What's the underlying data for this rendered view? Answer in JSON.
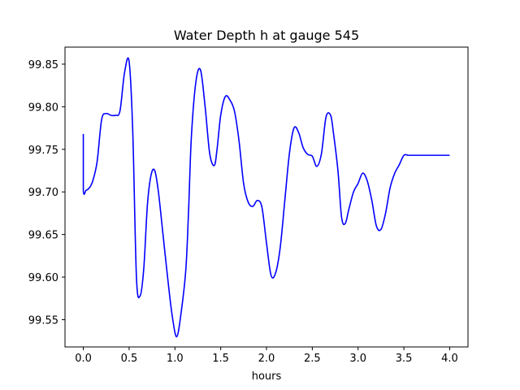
{
  "chart_data": {
    "type": "line",
    "title": "Water Depth h at gauge 545",
    "xlabel": "hours",
    "ylabel": "",
    "xlim": [
      -0.2,
      4.2
    ],
    "ylim": [
      99.518,
      99.87
    ],
    "grid": false,
    "xticks": [
      0.0,
      0.5,
      1.0,
      1.5,
      2.0,
      2.5,
      3.0,
      3.5,
      4.0
    ],
    "xtick_labels": [
      "0.0",
      "0.5",
      "1.0",
      "1.5",
      "2.0",
      "2.5",
      "3.0",
      "3.5",
      "4.0"
    ],
    "yticks": [
      99.55,
      99.6,
      99.65,
      99.7,
      99.75,
      99.8,
      99.85
    ],
    "ytick_labels": [
      "99.55",
      "99.60",
      "99.65",
      "99.70",
      "99.75",
      "99.80",
      "99.85"
    ],
    "series_color": "#0000ff",
    "series": [
      {
        "x": [
          0.0,
          0.0,
          0.03,
          0.06,
          0.1,
          0.15,
          0.2,
          0.25,
          0.3,
          0.35,
          0.4,
          0.45,
          0.5,
          0.54,
          0.58,
          0.62,
          0.66,
          0.7,
          0.74,
          0.78,
          0.82,
          0.87,
          0.92,
          0.97,
          1.02,
          1.07,
          1.12,
          1.15,
          1.18,
          1.23,
          1.28,
          1.33,
          1.38,
          1.43,
          1.46,
          1.5,
          1.55,
          1.6,
          1.65,
          1.7,
          1.75,
          1.8,
          1.85,
          1.9,
          1.95,
          2.0,
          2.05,
          2.1,
          2.15,
          2.2,
          2.25,
          2.3,
          2.35,
          2.4,
          2.45,
          2.5,
          2.55,
          2.6,
          2.65,
          2.7,
          2.73,
          2.78,
          2.82,
          2.86,
          2.9,
          2.95,
          3.0,
          3.05,
          3.1,
          3.15,
          3.2,
          3.25,
          3.3,
          3.35,
          3.4,
          3.45,
          3.5,
          3.55,
          3.6,
          3.65,
          3.7,
          3.75,
          3.8,
          3.85,
          3.9,
          3.95,
          4.0
        ],
        "y": [
          99.768,
          99.702,
          99.702,
          99.704,
          99.712,
          99.735,
          99.785,
          99.792,
          99.79,
          99.79,
          99.795,
          99.84,
          99.853,
          99.77,
          99.6,
          99.578,
          99.61,
          99.685,
          99.72,
          99.725,
          99.7,
          99.65,
          99.6,
          99.555,
          99.53,
          99.56,
          99.61,
          99.68,
          99.765,
          99.83,
          99.843,
          99.8,
          99.745,
          99.731,
          99.75,
          99.79,
          99.812,
          99.808,
          99.795,
          99.76,
          99.71,
          99.688,
          99.683,
          99.69,
          99.682,
          99.64,
          99.602,
          99.605,
          99.635,
          99.69,
          99.745,
          99.775,
          99.77,
          99.752,
          99.744,
          99.742,
          99.73,
          99.745,
          99.788,
          99.79,
          99.77,
          99.725,
          99.67,
          99.663,
          99.68,
          99.7,
          99.71,
          99.722,
          99.713,
          99.69,
          99.66,
          99.656,
          99.675,
          99.705,
          99.722,
          99.732,
          99.743,
          99.743,
          99.743,
          99.743,
          99.743,
          99.743,
          99.743,
          99.743,
          99.743,
          99.743,
          99.743
        ]
      }
    ]
  }
}
